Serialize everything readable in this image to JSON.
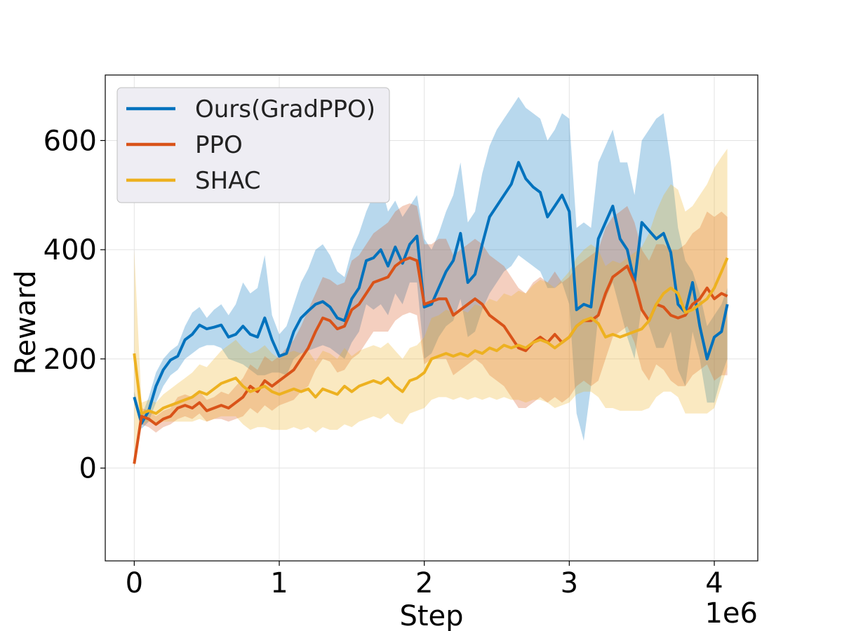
{
  "chart_data": {
    "type": "line",
    "title": "",
    "xlabel": "Step",
    "ylabel": "Reward",
    "x_offset_label": "1e6",
    "xlim": [
      -0.2,
      4.3
    ],
    "ylim": [
      -170,
      720
    ],
    "x_ticks": [
      0,
      1,
      2,
      3,
      4
    ],
    "x_tick_labels": [
      "0",
      "1",
      "2",
      "3",
      "4"
    ],
    "y_ticks": [
      0,
      200,
      400,
      600
    ],
    "y_tick_labels": [
      "0",
      "200",
      "400",
      "600"
    ],
    "grid": true,
    "legend_position": "top-left",
    "x": [
      0.0,
      0.05,
      0.1,
      0.15,
      0.2,
      0.25,
      0.3,
      0.35,
      0.4,
      0.45,
      0.5,
      0.55,
      0.6,
      0.65,
      0.7,
      0.75,
      0.8,
      0.85,
      0.9,
      0.95,
      1.0,
      1.05,
      1.1,
      1.15,
      1.2,
      1.25,
      1.3,
      1.35,
      1.4,
      1.45,
      1.5,
      1.55,
      1.6,
      1.65,
      1.7,
      1.75,
      1.8,
      1.85,
      1.9,
      1.95,
      2.0,
      2.05,
      2.1,
      2.15,
      2.2,
      2.25,
      2.3,
      2.35,
      2.4,
      2.45,
      2.5,
      2.55,
      2.6,
      2.65,
      2.7,
      2.75,
      2.8,
      2.85,
      2.9,
      2.95,
      3.0,
      3.05,
      3.1,
      3.15,
      3.2,
      3.25,
      3.3,
      3.35,
      3.4,
      3.45,
      3.5,
      3.55,
      3.6,
      3.65,
      3.7,
      3.75,
      3.8,
      3.85,
      3.9,
      3.95,
      4.0,
      4.05,
      4.09
    ],
    "series": [
      {
        "name": "Ours(GradPPO)",
        "color": "#0072BD",
        "values": [
          130,
          82,
          105,
          150,
          180,
          198,
          205,
          235,
          245,
          262,
          255,
          258,
          262,
          240,
          245,
          260,
          245,
          240,
          275,
          235,
          205,
          210,
          250,
          275,
          288,
          300,
          305,
          295,
          275,
          270,
          310,
          330,
          380,
          385,
          400,
          370,
          405,
          375,
          410,
          425,
          295,
          300,
          330,
          360,
          380,
          430,
          340,
          355,
          410,
          460,
          480,
          500,
          520,
          560,
          530,
          515,
          505,
          460,
          480,
          500,
          470,
          290,
          300,
          295,
          420,
          450,
          480,
          420,
          400,
          340,
          450,
          435,
          420,
          430,
          395,
          300,
          285,
          340,
          260,
          200,
          240,
          250,
          300
        ],
        "upper": [
          140,
          95,
          130,
          175,
          200,
          215,
          225,
          260,
          285,
          295,
          275,
          290,
          300,
          280,
          300,
          340,
          320,
          330,
          390,
          280,
          245,
          260,
          300,
          340,
          365,
          400,
          410,
          390,
          360,
          350,
          400,
          430,
          470,
          500,
          520,
          470,
          490,
          460,
          480,
          500,
          420,
          400,
          430,
          470,
          500,
          560,
          450,
          470,
          540,
          590,
          620,
          640,
          660,
          680,
          660,
          650,
          640,
          600,
          620,
          650,
          640,
          440,
          450,
          440,
          560,
          590,
          620,
          560,
          560,
          500,
          600,
          620,
          640,
          650,
          560,
          440,
          380,
          360,
          320,
          260,
          280,
          300,
          330
        ],
        "lower": [
          120,
          72,
          85,
          120,
          150,
          170,
          180,
          200,
          210,
          220,
          225,
          225,
          220,
          200,
          195,
          190,
          180,
          170,
          170,
          175,
          175,
          170,
          200,
          210,
          215,
          220,
          225,
          220,
          210,
          200,
          230,
          250,
          300,
          290,
          300,
          280,
          320,
          300,
          340,
          340,
          200,
          210,
          240,
          260,
          270,
          310,
          240,
          250,
          290,
          320,
          340,
          360,
          370,
          390,
          380,
          370,
          360,
          330,
          330,
          340,
          300,
          100,
          50,
          150,
          280,
          310,
          340,
          290,
          240,
          200,
          300,
          260,
          220,
          220,
          250,
          180,
          150,
          250,
          200,
          120,
          120,
          170,
          200
        ]
      },
      {
        "name": "PPO",
        "color": "#D95319",
        "values": [
          8,
          95,
          90,
          80,
          90,
          95,
          110,
          115,
          110,
          120,
          105,
          110,
          115,
          110,
          120,
          130,
          150,
          140,
          160,
          150,
          160,
          170,
          180,
          200,
          220,
          250,
          275,
          270,
          255,
          260,
          290,
          300,
          320,
          340,
          345,
          350,
          370,
          380,
          385,
          380,
          300,
          305,
          310,
          310,
          280,
          290,
          300,
          310,
          300,
          280,
          270,
          260,
          240,
          220,
          215,
          230,
          240,
          230,
          245,
          230,
          240,
          260,
          270,
          270,
          280,
          320,
          350,
          360,
          370,
          340,
          290,
          270,
          300,
          295,
          280,
          275,
          280,
          300,
          310,
          330,
          310,
          320,
          315
        ],
        "upper": [
          20,
          110,
          105,
          95,
          105,
          110,
          130,
          135,
          130,
          140,
          125,
          130,
          140,
          135,
          150,
          165,
          190,
          180,
          205,
          195,
          205,
          220,
          235,
          260,
          290,
          320,
          350,
          345,
          335,
          340,
          380,
          390,
          410,
          430,
          440,
          450,
          470,
          480,
          485,
          480,
          410,
          410,
          420,
          420,
          390,
          400,
          410,
          420,
          410,
          390,
          380,
          370,
          350,
          330,
          320,
          340,
          350,
          340,
          360,
          340,
          350,
          370,
          380,
          390,
          400,
          440,
          460,
          470,
          480,
          450,
          400,
          380,
          410,
          410,
          400,
          400,
          410,
          430,
          440,
          470,
          460,
          470,
          460
        ],
        "lower": [
          0,
          80,
          75,
          65,
          75,
          80,
          90,
          95,
          90,
          100,
          85,
          90,
          90,
          85,
          90,
          95,
          110,
          100,
          115,
          105,
          115,
          120,
          125,
          140,
          150,
          180,
          200,
          195,
          175,
          180,
          200,
          210,
          230,
          250,
          250,
          250,
          270,
          280,
          285,
          280,
          190,
          200,
          200,
          200,
          170,
          180,
          190,
          200,
          190,
          170,
          160,
          150,
          130,
          110,
          110,
          120,
          130,
          120,
          130,
          120,
          130,
          150,
          160,
          150,
          160,
          200,
          240,
          250,
          260,
          230,
          180,
          160,
          190,
          180,
          160,
          150,
          150,
          170,
          180,
          190,
          160,
          170,
          170
        ]
      },
      {
        "name": "SHAC",
        "color": "#EDB120",
        "values": [
          210,
          100,
          105,
          100,
          110,
          115,
          120,
          125,
          130,
          140,
          135,
          145,
          155,
          160,
          165,
          150,
          140,
          145,
          150,
          140,
          135,
          140,
          145,
          140,
          145,
          130,
          145,
          140,
          135,
          150,
          140,
          150,
          155,
          160,
          155,
          165,
          150,
          140,
          160,
          165,
          175,
          200,
          205,
          210,
          205,
          210,
          205,
          215,
          210,
          220,
          215,
          225,
          220,
          225,
          220,
          230,
          235,
          230,
          220,
          230,
          240,
          260,
          270,
          275,
          265,
          240,
          245,
          240,
          245,
          250,
          255,
          270,
          300,
          320,
          330,
          320,
          285,
          290,
          300,
          310,
          330,
          360,
          385
        ],
        "upper": [
          400,
          120,
          125,
          120,
          135,
          145,
          155,
          165,
          175,
          190,
          185,
          200,
          215,
          225,
          235,
          220,
          210,
          215,
          225,
          210,
          200,
          210,
          215,
          210,
          215,
          195,
          215,
          210,
          200,
          220,
          205,
          215,
          220,
          225,
          220,
          230,
          215,
          200,
          220,
          225,
          240,
          275,
          280,
          290,
          285,
          290,
          285,
          300,
          295,
          310,
          305,
          320,
          315,
          325,
          320,
          335,
          345,
          340,
          330,
          345,
          360,
          385,
          400,
          410,
          400,
          370,
          380,
          375,
          385,
          395,
          405,
          430,
          470,
          500,
          520,
          510,
          470,
          480,
          500,
          520,
          550,
          570,
          585
        ],
        "lower": [
          0,
          80,
          85,
          80,
          85,
          85,
          85,
          85,
          85,
          90,
          85,
          90,
          95,
          95,
          95,
          80,
          70,
          75,
          75,
          70,
          70,
          70,
          75,
          70,
          75,
          65,
          75,
          70,
          70,
          80,
          75,
          85,
          90,
          95,
          90,
          100,
          85,
          80,
          100,
          105,
          110,
          125,
          130,
          130,
          125,
          130,
          125,
          130,
          125,
          130,
          125,
          130,
          125,
          125,
          120,
          125,
          125,
          120,
          110,
          115,
          120,
          135,
          140,
          140,
          130,
          110,
          110,
          105,
          105,
          105,
          105,
          110,
          130,
          140,
          140,
          130,
          100,
          100,
          100,
          100,
          110,
          150,
          185
        ]
      }
    ]
  }
}
